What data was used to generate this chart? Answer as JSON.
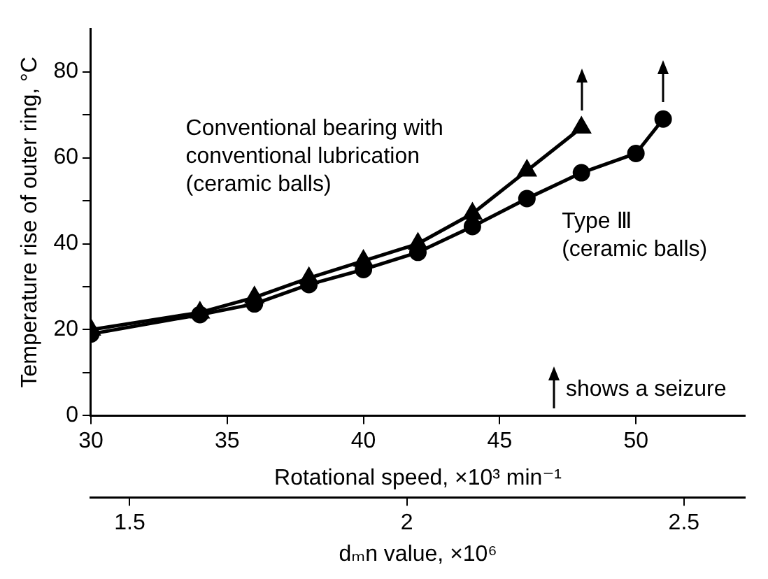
{
  "chart_data": {
    "type": "line",
    "xlabel": "Rotational speed, ×10³ min⁻¹",
    "ylabel": "Temperature rise of outer ring, °C",
    "x2label": "dₘn value, ×10⁶",
    "xlim": [
      30,
      54
    ],
    "xticks": [
      30,
      35,
      40,
      45,
      50
    ],
    "x2lim": [
      1.43,
      2.61
    ],
    "x2ticks": [
      1.5,
      2,
      2.5
    ],
    "ylim": [
      0,
      90
    ],
    "yticks": [
      0,
      {
        "value": 10,
        "label": null
      },
      20,
      {
        "value": 30,
        "label": null
      },
      40,
      {
        "value": 50,
        "label": null
      },
      60,
      {
        "value": 70,
        "label": null
      },
      80
    ],
    "grid": false,
    "legend": false,
    "line_style": "solid",
    "series": [
      {
        "name": "Conventional bearing with\nconventional lubrication\n(ceramic balls)",
        "color": "#000000",
        "marker": "triangle",
        "x": [
          30,
          34,
          36,
          38,
          40,
          42,
          44,
          46,
          48
        ],
        "values": [
          20,
          24,
          27.5,
          32,
          36,
          40,
          47,
          57,
          67
        ]
      },
      {
        "name": "Type Ⅲ\n(ceramic balls)",
        "color": "#000000",
        "marker": "circle",
        "x": [
          30,
          34,
          36,
          38,
          40,
          42,
          44,
          46,
          48,
          50,
          51
        ],
        "values": [
          19,
          23.5,
          26,
          30.5,
          34,
          38,
          44,
          50.5,
          56.5,
          61,
          69
        ]
      }
    ],
    "annotations": [
      "shows a seizure"
    ]
  }
}
